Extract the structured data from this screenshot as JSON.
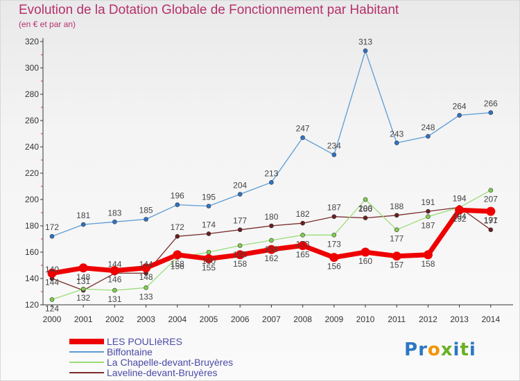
{
  "chart_data": {
    "type": "line",
    "title": "Evolution de la Dotation Globale de Fonctionnement par Habitant",
    "subtitle": "(en € et par an)",
    "xlabel": "",
    "ylabel": "",
    "ylim": [
      120,
      320
    ],
    "yticks": [
      120,
      140,
      160,
      180,
      200,
      220,
      240,
      260,
      280,
      300,
      320
    ],
    "x": [
      "2000",
      "2001",
      "2002",
      "2003",
      "2004",
      "2005",
      "2006",
      "2007",
      "2008",
      "2009",
      "2010",
      "2011",
      "2012",
      "2013",
      "2014"
    ],
    "grid": false,
    "legend_position": "bottom-left",
    "series": [
      {
        "name": "LES POULIèRES",
        "color": "#ee0000",
        "values": [
          144,
          148,
          146,
          148,
          158,
          155,
          158,
          162,
          165,
          156,
          160,
          157,
          158,
          192,
          191
        ]
      },
      {
        "name": "Biffontaine",
        "color": "#5b9bd5",
        "values": [
          172,
          181,
          183,
          185,
          196,
          195,
          204,
          213,
          247,
          234,
          313,
          243,
          248,
          264,
          266
        ]
      },
      {
        "name": "La Chapelle-devant-Bruyères",
        "color": "#99dd77",
        "values": [
          124,
          132,
          131,
          133,
          156,
          160,
          165,
          169,
          173,
          173,
          200,
          177,
          187,
          194,
          207
        ]
      },
      {
        "name": "Laveline-devant-Bruyères",
        "color": "#7a2b2b",
        "values": [
          140,
          131,
          144,
          144,
          172,
          174,
          177,
          180,
          182,
          187,
          186,
          188,
          191,
          194,
          177
        ]
      }
    ]
  },
  "brand": {
    "letters": [
      "P",
      "r",
      "o",
      "x",
      "i",
      "t",
      "i"
    ],
    "colors": [
      "#2b78c2",
      "#2b78c2",
      "#f29400",
      "#6ab023",
      "#2b78c2",
      "#6ab023",
      "#2b78c2"
    ]
  }
}
